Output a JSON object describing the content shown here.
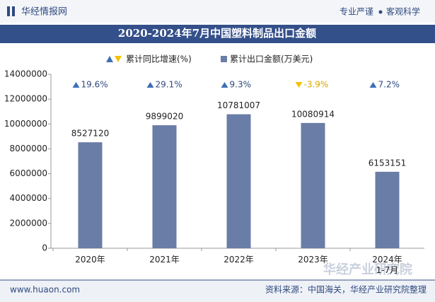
{
  "header": {
    "logo": "华经情报网",
    "slogan_left": "专业严谨",
    "slogan_right": "客观科学"
  },
  "chart_data": {
    "type": "bar",
    "title": "2020-2024年7月中国塑料制品出口金额",
    "categories": [
      "2020年",
      "2021年",
      "2022年",
      "2023年",
      "2024年\n1-7月"
    ],
    "series": [
      {
        "name": "累计同比增速(%)",
        "kind": "growth",
        "color": "#3d6fb6",
        "negative_color": "#f5c100",
        "values": [
          19.6,
          29.1,
          9.3,
          -3.9,
          7.2
        ],
        "value_labels": [
          "19.6%",
          "29.1%",
          "9.3%",
          "-3.9%",
          "7.2%"
        ]
      },
      {
        "name": "累计出口金额(万美元)",
        "kind": "bar",
        "color": "#6a7da6",
        "values": [
          8527120,
          9899020,
          10781007,
          10080914,
          6153151
        ]
      }
    ],
    "ylim": [
      0,
      14000000
    ],
    "yticks": [
      0,
      2000000,
      4000000,
      6000000,
      8000000,
      10000000,
      12000000,
      14000000
    ]
  },
  "footer": {
    "website": "www.huaon.com",
    "source": "资料来源：中国海关，华经产业研究院整理",
    "brand": "华经产业研究院"
  }
}
